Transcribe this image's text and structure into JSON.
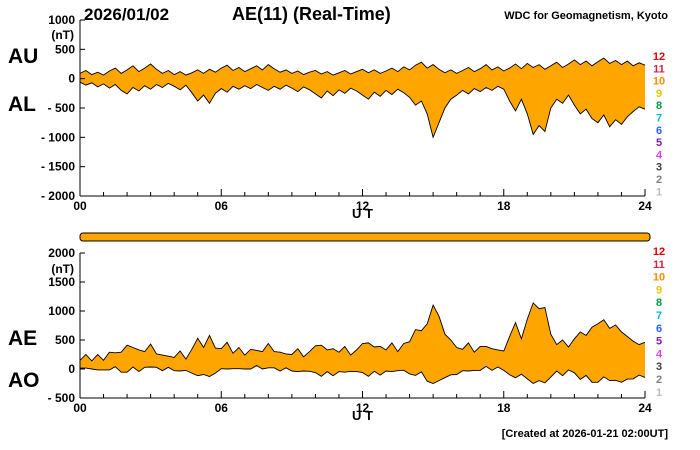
{
  "header": {
    "date": "2026/01/02",
    "title": "AE(11) (Real-Time)",
    "source": "WDC for Geomagnetism, Kyoto"
  },
  "footer": {
    "created": "[Created at 2026-01-21 02:00UT]"
  },
  "stations": {
    "labels": [
      "12",
      "11",
      "10",
      "9",
      "8",
      "7",
      "6",
      "5",
      "4",
      "3",
      "2",
      "1"
    ],
    "colors": [
      "#e60000",
      "#d62246",
      "#ff8c00",
      "#e6c700",
      "#00a040",
      "#00bcd4",
      "#2962ff",
      "#7b1fa2",
      "#e040fb",
      "#404040",
      "#808080",
      "#bdbdbd"
    ]
  },
  "availability_bar": {
    "color": "#FFA500"
  },
  "chart_data": [
    {
      "type": "area",
      "panel": "AU-AL",
      "xlabel": "U T",
      "ylabel": "(nT)",
      "xlim": [
        0,
        24
      ],
      "ylim": [
        -2000,
        1000
      ],
      "fill_color": "#FFA500",
      "points_per_hour": 4,
      "xticks": [
        {
          "v": 0,
          "label": "00"
        },
        {
          "v": 6,
          "label": "06"
        },
        {
          "v": 12,
          "label": "12"
        },
        {
          "v": 18,
          "label": "18"
        },
        {
          "v": 24,
          "label": "24"
        }
      ],
      "yticks": [
        {
          "v": 1000,
          "label": "1000"
        },
        {
          "v": 500,
          "label": "500"
        },
        {
          "v": 0,
          "label": "0"
        },
        {
          "v": -500,
          "label": "- 500"
        },
        {
          "v": -1000,
          "label": "- 1000"
        },
        {
          "v": -1500,
          "label": "- 1500"
        },
        {
          "v": -2000,
          "label": "- 2000"
        }
      ],
      "left_labels": [
        "AU",
        "AL"
      ],
      "series": [
        {
          "name": "AU",
          "values": [
            90,
            140,
            70,
            110,
            60,
            130,
            180,
            90,
            150,
            220,
            120,
            180,
            250,
            160,
            90,
            140,
            70,
            120,
            60,
            100,
            150,
            90,
            160,
            110,
            180,
            230,
            140,
            190,
            120,
            170,
            220,
            150,
            240,
            170,
            110,
            150,
            90,
            130,
            70,
            110,
            140,
            80,
            120,
            60,
            100,
            140,
            80,
            120,
            160,
            100,
            150,
            90,
            130,
            180,
            120,
            200,
            150,
            230,
            280,
            180,
            240,
            160,
            100,
            150,
            90,
            140,
            190,
            120,
            170,
            240,
            150,
            200,
            130,
            180,
            250,
            170,
            260,
            190,
            240,
            160,
            220,
            280,
            190,
            250,
            320,
            240,
            300,
            220,
            290,
            350,
            260,
            310,
            240,
            300,
            220,
            270,
            230
          ]
        },
        {
          "name": "AL",
          "values": [
            -60,
            -110,
            -70,
            -140,
            -90,
            -160,
            -100,
            -200,
            -260,
            -150,
            -210,
            -120,
            -180,
            -100,
            -150,
            -80,
            -130,
            -190,
            -110,
            -240,
            -380,
            -280,
            -420,
            -250,
            -170,
            -230,
            -130,
            -180,
            -120,
            -170,
            -100,
            -150,
            -200,
            -130,
            -180,
            -110,
            -160,
            -220,
            -140,
            -190,
            -260,
            -330,
            -210,
            -290,
            -190,
            -250,
            -160,
            -210,
            -280,
            -350,
            -230,
            -300,
            -200,
            -270,
            -180,
            -240,
            -320,
            -450,
            -380,
            -600,
            -1000,
            -750,
            -500,
            -350,
            -280,
            -200,
            -260,
            -170,
            -220,
            -150,
            -200,
            -130,
            -180,
            -380,
            -550,
            -350,
            -600,
            -950,
            -800,
            -900,
            -500,
            -350,
            -420,
            -280,
            -450,
            -600,
            -520,
            -680,
            -750,
            -620,
            -820,
            -700,
            -780,
            -650,
            -560,
            -480,
            -520
          ]
        }
      ]
    },
    {
      "type": "area",
      "panel": "AE-AO",
      "xlabel": "U T",
      "ylabel": "(nT)",
      "xlim": [
        0,
        24
      ],
      "ylim": [
        -500,
        2000
      ],
      "fill_color": "#FFA500",
      "points_per_hour": 4,
      "xticks": [
        {
          "v": 0,
          "label": "00"
        },
        {
          "v": 6,
          "label": "06"
        },
        {
          "v": 12,
          "label": "12"
        },
        {
          "v": 18,
          "label": "18"
        },
        {
          "v": 24,
          "label": "24"
        }
      ],
      "yticks": [
        {
          "v": 2000,
          "label": "2000"
        },
        {
          "v": 1500,
          "label": "1500"
        },
        {
          "v": 1000,
          "label": "1000"
        },
        {
          "v": 500,
          "label": "500"
        },
        {
          "v": 0,
          "label": "0"
        },
        {
          "v": -500,
          "label": "- 500"
        }
      ],
      "left_labels": [
        "AE",
        "AO"
      ],
      "series": [
        {
          "name": "AE",
          "values": [
            150,
            250,
            140,
            250,
            150,
            290,
            280,
            290,
            410,
            370,
            330,
            300,
            430,
            260,
            240,
            220,
            200,
            310,
            170,
            340,
            530,
            370,
            580,
            360,
            350,
            460,
            270,
            370,
            240,
            340,
            320,
            300,
            440,
            300,
            290,
            260,
            250,
            350,
            210,
            300,
            400,
            410,
            330,
            350,
            290,
            390,
            240,
            330,
            440,
            450,
            380,
            390,
            330,
            450,
            300,
            440,
            470,
            680,
            660,
            780,
            1100,
            910,
            600,
            500,
            370,
            340,
            450,
            290,
            390,
            390,
            350,
            330,
            310,
            560,
            800,
            520,
            860,
            1140,
            1040,
            1060,
            600,
            420,
            500,
            380,
            520,
            640,
            580,
            720,
            780,
            850,
            700,
            760,
            640,
            560,
            480,
            420,
            460
          ]
        },
        {
          "name": "AO",
          "values": [
            15,
            15,
            0,
            -15,
            -15,
            -15,
            40,
            -55,
            -55,
            35,
            -45,
            30,
            35,
            30,
            -30,
            30,
            -30,
            -35,
            -25,
            -70,
            -115,
            -95,
            -130,
            -70,
            5,
            0,
            5,
            5,
            0,
            0,
            60,
            0,
            20,
            20,
            -35,
            20,
            -35,
            -45,
            -35,
            -40,
            -60,
            -125,
            -45,
            -115,
            -45,
            -55,
            -40,
            -45,
            -60,
            -125,
            -40,
            -105,
            -35,
            -45,
            -30,
            -20,
            -85,
            -110,
            -50,
            -210,
            -250,
            -200,
            -150,
            -100,
            -95,
            -30,
            -35,
            -25,
            -25,
            45,
            -25,
            35,
            -25,
            -100,
            -150,
            -90,
            -170,
            -250,
            -200,
            -240,
            -140,
            -35,
            -115,
            -15,
            -65,
            -180,
            -110,
            -230,
            -230,
            -135,
            -200,
            -195,
            -230,
            -175,
            -170,
            -105,
            -145
          ]
        }
      ]
    }
  ]
}
